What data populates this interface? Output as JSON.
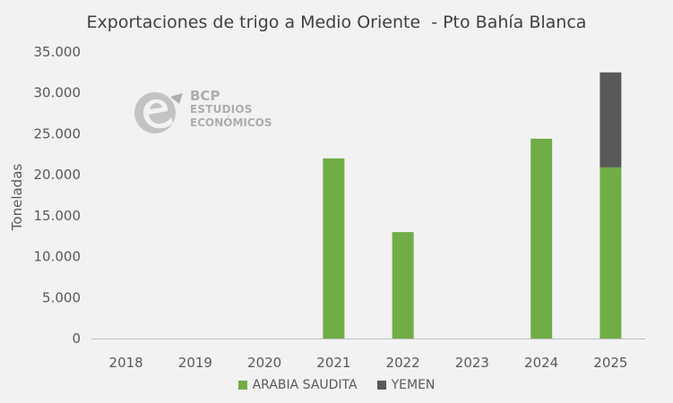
{
  "logo": {
    "name": "BCP",
    "line1": "ESTUDIOS",
    "line2": "ECONÓMICOS"
  },
  "chart_data": {
    "type": "bar",
    "stacked": true,
    "title": "Exportaciones de trigo a Medio Oriente  - Pto Bahía Blanca",
    "xlabel": "",
    "ylabel": "Toneladas",
    "categories": [
      "2018",
      "2019",
      "2020",
      "2021",
      "2022",
      "2023",
      "2024",
      "2025"
    ],
    "series": [
      {
        "name": "ARABIA SAUDITA",
        "color": "#70ad47",
        "values": [
          0,
          0,
          0,
          22000,
          13000,
          0,
          24400,
          20900
        ]
      },
      {
        "name": "YEMEN",
        "color": "#595959",
        "values": [
          0,
          0,
          0,
          0,
          0,
          0,
          0,
          11600
        ]
      }
    ],
    "ylim": [
      0,
      35000
    ],
    "yticks": [
      "0",
      "5.000",
      "10.000",
      "15.000",
      "20.000",
      "25.000",
      "30.000",
      "35.000"
    ],
    "ytick_values": [
      0,
      5000,
      10000,
      15000,
      20000,
      25000,
      30000,
      35000
    ],
    "grid": false,
    "legend_position": "bottom"
  }
}
